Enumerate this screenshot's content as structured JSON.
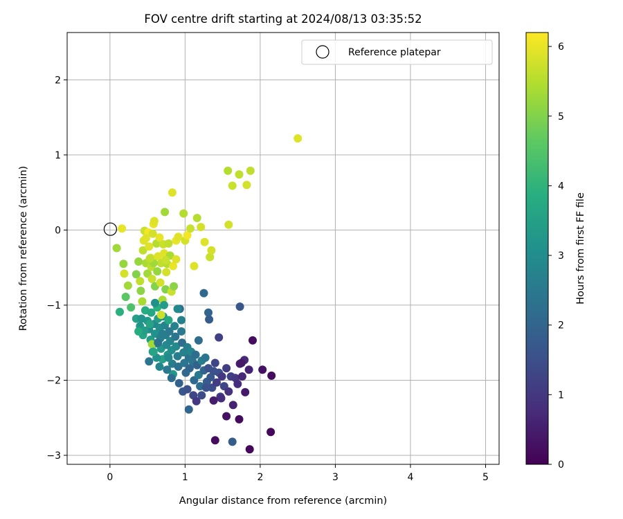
{
  "chart_data": {
    "type": "scatter",
    "title": "FOV centre drift starting at 2024/08/13 03:35:52",
    "xlabel": "Angular distance from reference (arcmin)",
    "ylabel": "Rotation from reference (arcmin)",
    "xlim": [
      -0.57,
      5.18
    ],
    "ylim": [
      -3.12,
      2.63
    ],
    "xticks": [
      "0",
      "1",
      "2",
      "3",
      "4",
      "5"
    ],
    "yticks": [
      "2",
      "1",
      "0",
      "−1",
      "−2",
      "−3"
    ],
    "grid": true,
    "legend": {
      "placement": "top-right",
      "entries": [
        "Reference platepar"
      ]
    },
    "reference_point": {
      "x": 0,
      "y": 0
    },
    "colorbar": {
      "label": "Hours from first FF file",
      "range": [
        0,
        6.2
      ],
      "ticks": [
        "0",
        "1",
        "2",
        "3",
        "4",
        "5",
        "6"
      ],
      "colormap": "viridis"
    },
    "points": [
      [
        0.16,
        0.02,
        6.0
      ],
      [
        0.09,
        -0.24,
        5.3
      ],
      [
        0.18,
        -0.45,
        5.2
      ],
      [
        0.19,
        -0.58,
        5.8
      ],
      [
        0.21,
        -0.89,
        4.6
      ],
      [
        0.24,
        -0.74,
        5.3
      ],
      [
        0.28,
        -1.03,
        4.4
      ],
      [
        0.13,
        -1.09,
        3.9
      ],
      [
        0.35,
        -0.59,
        5.0
      ],
      [
        0.38,
        -0.42,
        5.2
      ],
      [
        0.4,
        -0.68,
        5.6
      ],
      [
        0.41,
        -0.81,
        5.1
      ],
      [
        0.43,
        -0.95,
        5.4
      ],
      [
        0.44,
        -0.27,
        5.6
      ],
      [
        0.45,
        -0.14,
        5.9
      ],
      [
        0.46,
        -0.01,
        5.7
      ],
      [
        0.48,
        -0.44,
        5.4
      ],
      [
        0.5,
        -0.58,
        5.3
      ],
      [
        0.51,
        -0.03,
        6.1
      ],
      [
        0.52,
        -0.22,
        5.9
      ],
      [
        0.54,
        -0.37,
        5.8
      ],
      [
        0.55,
        -0.49,
        5.6
      ],
      [
        0.56,
        -0.65,
        5.7
      ],
      [
        0.57,
        -0.05,
        5.8
      ],
      [
        0.58,
        0.08,
        6.0
      ],
      [
        0.59,
        0.12,
        5.9
      ],
      [
        0.6,
        -0.75,
        5.0
      ],
      [
        0.62,
        -0.18,
        5.5
      ],
      [
        0.63,
        -0.55,
        5.2
      ],
      [
        0.64,
        -0.35,
        5.9
      ],
      [
        0.66,
        -0.1,
        6.0
      ],
      [
        0.67,
        -0.7,
        5.8
      ],
      [
        0.68,
        -0.44,
        5.6
      ],
      [
        0.7,
        -0.93,
        5.4
      ],
      [
        0.71,
        -0.19,
        5.7
      ],
      [
        0.72,
        -0.31,
        5.9
      ],
      [
        0.73,
        0.24,
        5.3
      ],
      [
        0.74,
        -0.79,
        5.0
      ],
      [
        0.75,
        -0.56,
        5.8
      ],
      [
        0.76,
        -0.45,
        5.5
      ],
      [
        0.78,
        -0.18,
        5.6
      ],
      [
        0.8,
        -0.34,
        5.4
      ],
      [
        0.82,
        -0.82,
        5.7
      ],
      [
        0.83,
        0.5,
        5.9
      ],
      [
        0.84,
        -0.48,
        6.0
      ],
      [
        0.85,
        -0.75,
        5.1
      ],
      [
        0.88,
        -0.14,
        6.0
      ],
      [
        0.91,
        -0.09,
        5.9
      ],
      [
        0.98,
        0.22,
        5.5
      ],
      [
        1.0,
        -0.14,
        5.8
      ],
      [
        1.03,
        -0.07,
        6.1
      ],
      [
        1.07,
        0.02,
        5.7
      ],
      [
        1.12,
        -0.48,
        5.9
      ],
      [
        1.16,
        0.16,
        5.5
      ],
      [
        1.21,
        0.04,
        5.8
      ],
      [
        1.26,
        -0.16,
        5.9
      ],
      [
        1.33,
        -0.36,
        5.7
      ],
      [
        1.35,
        -0.27,
        5.8
      ],
      [
        1.57,
        0.79,
        5.5
      ],
      [
        1.63,
        0.59,
        5.7
      ],
      [
        1.72,
        0.74,
        5.6
      ],
      [
        1.82,
        0.6,
        5.8
      ],
      [
        1.87,
        0.79,
        5.6
      ],
      [
        2.5,
        1.22,
        5.9
      ],
      [
        1.58,
        0.07,
        5.8
      ],
      [
        0.88,
        -0.39,
        5.9
      ],
      [
        0.74,
        -0.4,
        5.7
      ],
      [
        0.58,
        -0.44,
        5.3
      ],
      [
        0.53,
        -0.38,
        5.6
      ],
      [
        0.48,
        -0.11,
        5.9
      ],
      [
        0.35,
        -1.18,
        3.5
      ],
      [
        0.4,
        -1.28,
        3.2
      ],
      [
        0.44,
        -1.4,
        3.6
      ],
      [
        0.47,
        -1.07,
        3.8
      ],
      [
        0.5,
        -1.21,
        3.3
      ],
      [
        0.52,
        -1.32,
        3.0
      ],
      [
        0.54,
        -1.46,
        3.4
      ],
      [
        0.55,
        -1.1,
        3.7
      ],
      [
        0.57,
        -1.62,
        3.2
      ],
      [
        0.59,
        -1.25,
        2.9
      ],
      [
        0.6,
        -1.38,
        3.1
      ],
      [
        0.61,
        -1.51,
        2.8
      ],
      [
        0.63,
        -1.03,
        3.9
      ],
      [
        0.64,
        -1.18,
        3.4
      ],
      [
        0.66,
        -1.3,
        3.0
      ],
      [
        0.67,
        -1.44,
        2.7
      ],
      [
        0.68,
        -1.58,
        3.3
      ],
      [
        0.7,
        -1.72,
        3.5
      ],
      [
        0.71,
        -1.15,
        3.1
      ],
      [
        0.73,
        -1.27,
        2.8
      ],
      [
        0.74,
        -1.4,
        2.6
      ],
      [
        0.75,
        -1.53,
        2.9
      ],
      [
        0.77,
        -1.66,
        3.2
      ],
      [
        0.78,
        -1.2,
        3.7
      ],
      [
        0.79,
        -1.35,
        2.5
      ],
      [
        0.8,
        -1.48,
        2.8
      ],
      [
        0.82,
        -1.6,
        3.0
      ],
      [
        0.83,
        -1.78,
        2.6
      ],
      [
        0.84,
        -1.92,
        3.3
      ],
      [
        0.86,
        -1.28,
        2.7
      ],
      [
        0.87,
        -1.42,
        2.4
      ],
      [
        0.88,
        -1.55,
        2.9
      ],
      [
        0.9,
        -1.68,
        2.6
      ],
      [
        0.91,
        -1.82,
        2.3
      ],
      [
        0.93,
        -1.05,
        2.2
      ],
      [
        0.95,
        -1.35,
        2.5
      ],
      [
        0.96,
        -1.5,
        2.2
      ],
      [
        0.98,
        -1.63,
        2.7
      ],
      [
        0.99,
        -1.77,
        2.4
      ],
      [
        1.01,
        -1.9,
        2.1
      ],
      [
        1.03,
        -1.56,
        2.6
      ],
      [
        1.05,
        -1.7,
        2.3
      ],
      [
        1.06,
        -1.84,
        2.0
      ],
      [
        1.08,
        -1.62,
        2.8
      ],
      [
        1.1,
        -1.75,
        2.4
      ],
      [
        1.12,
        -2.0,
        2.1
      ],
      [
        1.14,
        -1.66,
        2.2
      ],
      [
        1.16,
        -1.8,
        1.9
      ],
      [
        1.18,
        -1.93,
        2.5
      ],
      [
        1.2,
        -2.08,
        2.2
      ],
      [
        1.22,
        -1.74,
        2.6
      ],
      [
        1.25,
        -1.87,
        2.0
      ],
      [
        1.27,
        -1.7,
        2.4
      ],
      [
        1.29,
        -2.02,
        1.8
      ],
      [
        1.31,
        -1.84,
        1.5
      ],
      [
        1.34,
        -1.96,
        1.7
      ],
      [
        1.36,
        -2.1,
        1.4
      ],
      [
        1.38,
        -1.88,
        1.6
      ],
      [
        1.4,
        -1.77,
        1.3
      ],
      [
        1.42,
        -2.03,
        1.1
      ],
      [
        1.45,
        -1.9,
        1.5
      ],
      [
        1.47,
        -2.22,
        1.2
      ],
      [
        1.49,
        -1.95,
        1.0
      ],
      [
        1.52,
        -2.08,
        1.3
      ],
      [
        1.55,
        -1.84,
        1.1
      ],
      [
        1.58,
        -2.15,
        0.9
      ],
      [
        1.61,
        -1.95,
        1.2
      ],
      [
        1.64,
        -2.33,
        0.6
      ],
      [
        1.67,
        -1.97,
        1.0
      ],
      [
        1.7,
        -2.05,
        0.8
      ],
      [
        1.73,
        -1.78,
        0.5
      ],
      [
        1.76,
        -1.95,
        0.7
      ],
      [
        1.8,
        -2.16,
        0.4
      ],
      [
        1.85,
        -1.86,
        0.6
      ],
      [
        1.9,
        -1.47,
        0.2
      ],
      [
        2.03,
        -1.86,
        0.3
      ],
      [
        2.15,
        -1.94,
        0.2
      ],
      [
        2.14,
        -2.69,
        0.1
      ],
      [
        1.86,
        -2.92,
        0.1
      ],
      [
        1.4,
        -2.8,
        0.2
      ],
      [
        1.63,
        -2.82,
        1.8
      ],
      [
        1.55,
        -2.48,
        0.3
      ],
      [
        1.72,
        -2.52,
        0.2
      ],
      [
        1.48,
        -2.24,
        0.8
      ],
      [
        1.38,
        -2.27,
        0.5
      ],
      [
        1.05,
        -2.39,
        2.0
      ],
      [
        1.31,
        -1.1,
        2.0
      ],
      [
        1.25,
        -0.84,
        2.1
      ],
      [
        1.32,
        -1.19,
        1.8
      ],
      [
        1.73,
        -1.02,
        1.7
      ],
      [
        1.45,
        -1.43,
        1.2
      ],
      [
        1.79,
        -1.73,
        0.7
      ],
      [
        1.75,
        -1.77,
        0.4
      ],
      [
        1.18,
        -1.47,
        2.2
      ],
      [
        0.95,
        -1.2,
        2.7
      ],
      [
        0.9,
        -1.05,
        2.9
      ],
      [
        0.72,
        -1.0,
        3.4
      ],
      [
        0.6,
        -0.97,
        3.1
      ],
      [
        0.56,
        -1.52,
        5.3
      ],
      [
        0.68,
        -1.13,
        5.7
      ],
      [
        0.53,
        -1.25,
        3.6
      ],
      [
        0.46,
        -1.34,
        3.4
      ],
      [
        0.42,
        -1.18,
        3.2
      ],
      [
        0.38,
        -1.35,
        3.8
      ],
      [
        0.62,
        -1.7,
        3.1
      ],
      [
        0.66,
        -1.82,
        2.8
      ],
      [
        0.76,
        -1.86,
        2.5
      ],
      [
        0.82,
        -1.97,
        2.2
      ],
      [
        0.92,
        -2.04,
        1.9
      ],
      [
        0.97,
        -2.15,
        1.7
      ],
      [
        1.03,
        -2.12,
        1.5
      ],
      [
        1.11,
        -2.2,
        1.3
      ],
      [
        1.15,
        -2.28,
        1.0
      ],
      [
        1.22,
        -2.2,
        1.4
      ],
      [
        1.28,
        -2.1,
        1.6
      ],
      [
        0.58,
        -1.62,
        3.6
      ],
      [
        0.52,
        -1.75,
        2.4
      ],
      [
        0.64,
        -1.5,
        2.3
      ],
      [
        0.7,
        -1.38,
        2.6
      ],
      [
        0.78,
        -1.7,
        2.9
      ]
    ]
  }
}
